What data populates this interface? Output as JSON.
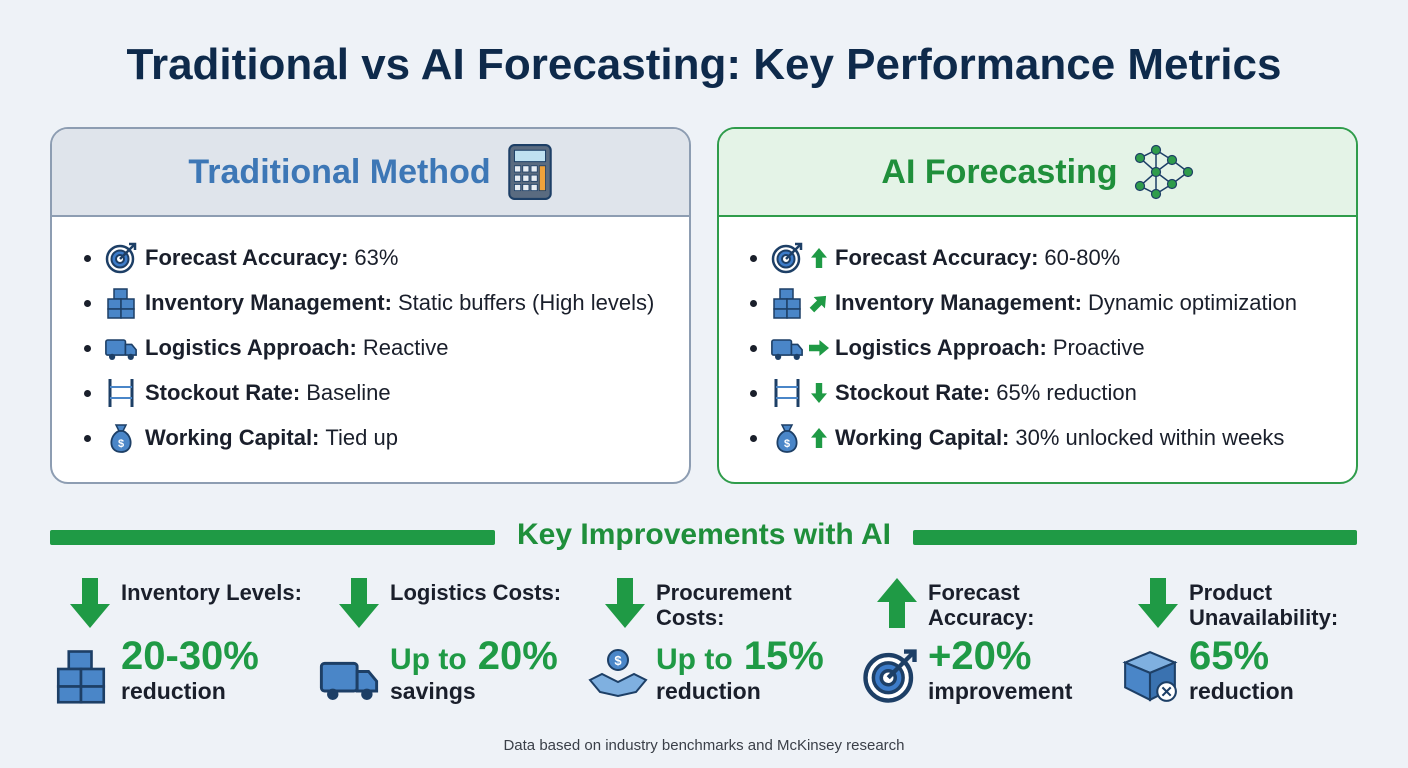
{
  "title": "Traditional vs AI Forecasting: Key Performance Metrics",
  "panels": [
    {
      "title": "Traditional Method",
      "items": [
        {
          "label": "Forecast Accuracy:",
          "text": "63%"
        },
        {
          "label": "Inventory Management:",
          "text": "Static buffers (High levels)"
        },
        {
          "label": "Logistics Approach:",
          "text": "Reactive"
        },
        {
          "label": "Stockout Rate:",
          "text": "Baseline"
        },
        {
          "label": "Working Capital:",
          "text": "Tied up"
        }
      ]
    },
    {
      "title": "AI Forecasting",
      "items": [
        {
          "label": "Forecast Accuracy:",
          "text": "60-80%"
        },
        {
          "label": "Inventory Management:",
          "text": "Dynamic optimization"
        },
        {
          "label": "Logistics Approach:",
          "text": "Proactive"
        },
        {
          "label": "Stockout Rate:",
          "text": "65% reduction"
        },
        {
          "label": "Working Capital:",
          "text": "30% unlocked within weeks"
        }
      ]
    }
  ],
  "improvements": {
    "title": "Key Improvements with AI",
    "items": [
      {
        "label": "Inventory Levels:",
        "value": "20-30%",
        "caption": "reduction"
      },
      {
        "label": "Logistics Costs:",
        "prefix": "Up to",
        "value": "20%",
        "caption": "savings"
      },
      {
        "label": "Procurement Costs:",
        "prefix": "Up to",
        "value": "15%",
        "caption": "reduction"
      },
      {
        "label": "Forecast Accuracy:",
        "value": "+20%",
        "caption": "improvement"
      },
      {
        "label": "Product Unavailability:",
        "value": "65%",
        "caption": "reduction"
      }
    ]
  },
  "footnote": "Data based on industry benchmarks and McKinsey research"
}
